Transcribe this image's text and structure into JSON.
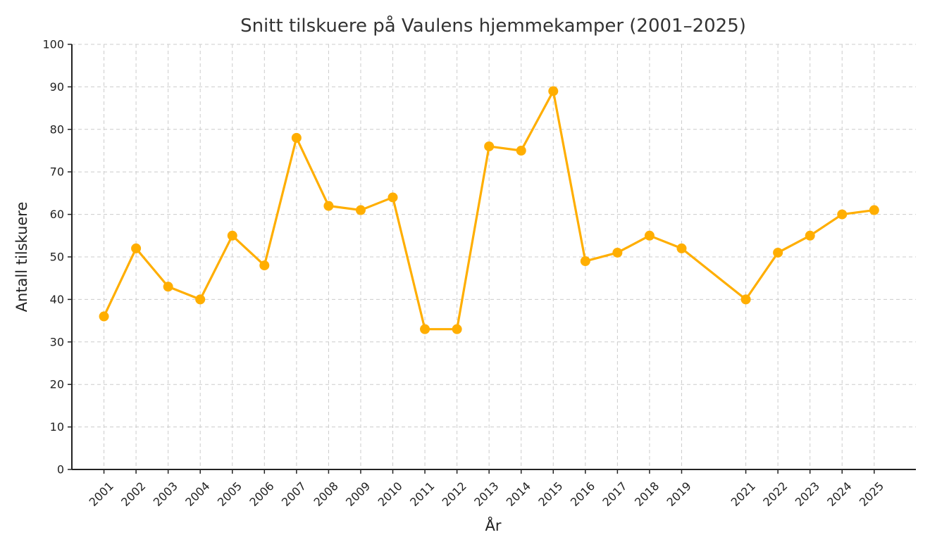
{
  "chart_data": {
    "type": "line",
    "title": "Snitt tilskuere på Vaulens hjemmekamper (2001–2025)",
    "xlabel": "År",
    "ylabel": "Antall tilskuere",
    "x": [
      2001,
      2002,
      2003,
      2004,
      2005,
      2006,
      2007,
      2008,
      2009,
      2010,
      2011,
      2012,
      2013,
      2014,
      2015,
      2016,
      2017,
      2018,
      2019,
      2021,
      2022,
      2023,
      2024,
      2025
    ],
    "series": [
      {
        "values": [
          36,
          52,
          43,
          40,
          55,
          48,
          78,
          62,
          61,
          64,
          33,
          33,
          76,
          75,
          89,
          49,
          51,
          55,
          52,
          40,
          51,
          55,
          60,
          61
        ],
        "color": "#FFAE00"
      }
    ],
    "ylim": [
      0,
      100
    ],
    "yticks": [
      0,
      10,
      20,
      30,
      40,
      50,
      60,
      70,
      80,
      90,
      100
    ],
    "grid": true,
    "colors": {
      "line": "#FFAE00",
      "grid": "#cccccc",
      "axis": "#222222",
      "text": "#333333"
    }
  }
}
